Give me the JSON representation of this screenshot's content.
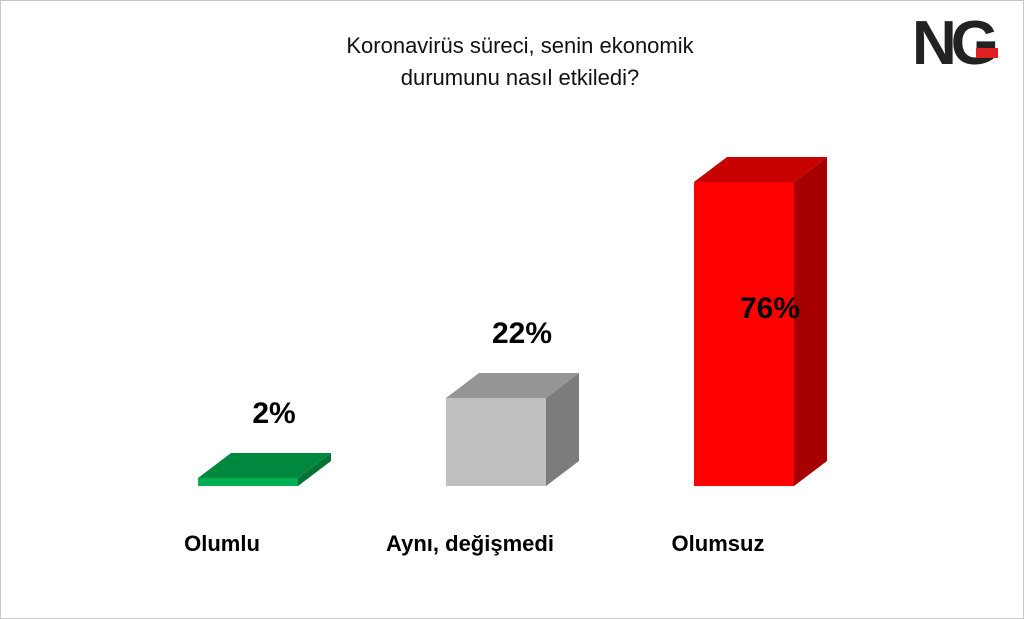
{
  "chart_data": {
    "type": "bar3d",
    "title": "Koronavirüs süreci, senin ekonomik durumunu nasıl etkiledi?",
    "logo": "NG",
    "categories": [
      "Olumlu",
      "Aynı, değişmedi",
      "Olumsuz"
    ],
    "values": [
      2,
      22,
      76
    ],
    "value_labels": [
      "2%",
      "22%",
      "76%"
    ],
    "colors": [
      "#00b050",
      "#bfbfbf",
      "#ff0000"
    ]
  }
}
